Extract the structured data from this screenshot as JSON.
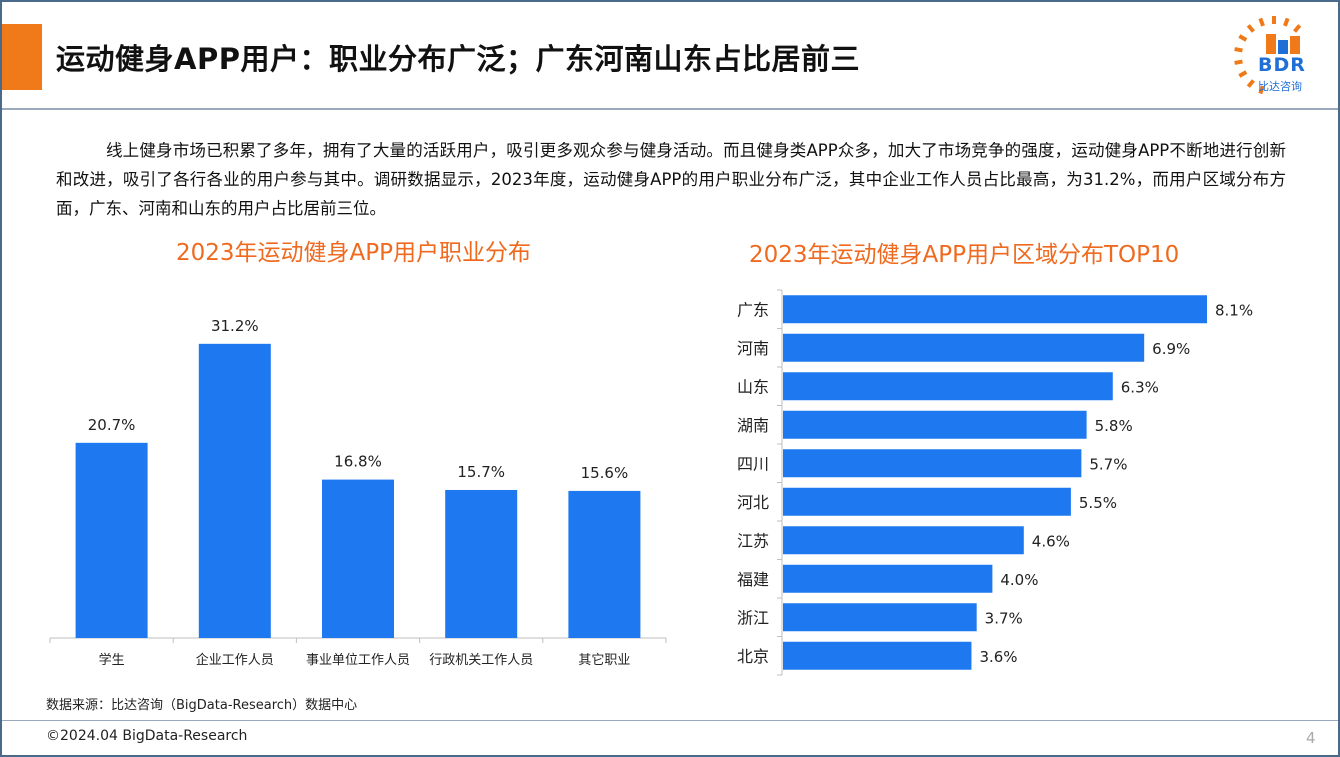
{
  "header": {
    "title": "运动健身APP用户：职业分布广泛；广东河南山东占比居前三"
  },
  "logo": {
    "text": "BDR",
    "subtitle": "比达咨询"
  },
  "intro": {
    "text": "线上健身市场已积累了多年，拥有了大量的活跃用户，吸引更多观众参与健身活动。而且健身类APP众多，加大了市场竞争的强度，运动健身APP不断地进行创新和改进，吸引了各行各业的用户参与其中。调研数据显示，2023年度，运动健身APP的用户职业分布广泛，其中企业工作人员占比最高，为31.2%，而用户区域分布方面，广东、河南和山东的用户占比居前三位。"
  },
  "footer": {
    "source": "数据来源：比达咨询（BigData-Research）数据中心",
    "copyright": "©2024.04 BigData-Research",
    "page": "4"
  },
  "colors": {
    "accent": "#f07a1a",
    "bar": "#1e78f0",
    "title_orange": "#ef6a1f"
  },
  "chart_data": [
    {
      "type": "bar",
      "title": "2023年运动健身APP用户职业分布",
      "categories": [
        "学生",
        "企业工作人员",
        "事业单位工作人员",
        "行政机关工作人员",
        "其它职业"
      ],
      "values": [
        20.7,
        31.2,
        16.8,
        15.7,
        15.6
      ],
      "labels": [
        "20.7%",
        "31.2%",
        "16.8%",
        "15.7%",
        "15.6%"
      ],
      "unit": "%",
      "ylim": [
        0,
        35
      ]
    },
    {
      "type": "bar",
      "orientation": "horizontal",
      "title": "2023年运动健身APP用户区域分布TOP10",
      "categories": [
        "广东",
        "河南",
        "山东",
        "湖南",
        "四川",
        "河北",
        "江苏",
        "福建",
        "浙江",
        "北京"
      ],
      "values": [
        8.1,
        6.9,
        6.3,
        5.8,
        5.7,
        5.5,
        4.6,
        4.0,
        3.7,
        3.6
      ],
      "labels": [
        "8.1%",
        "6.9%",
        "6.3%",
        "5.8%",
        "5.7%",
        "5.5%",
        "4.6%",
        "4.0%",
        "3.7%",
        "3.6%"
      ],
      "unit": "%",
      "xlim": [
        0,
        8.1
      ]
    }
  ]
}
